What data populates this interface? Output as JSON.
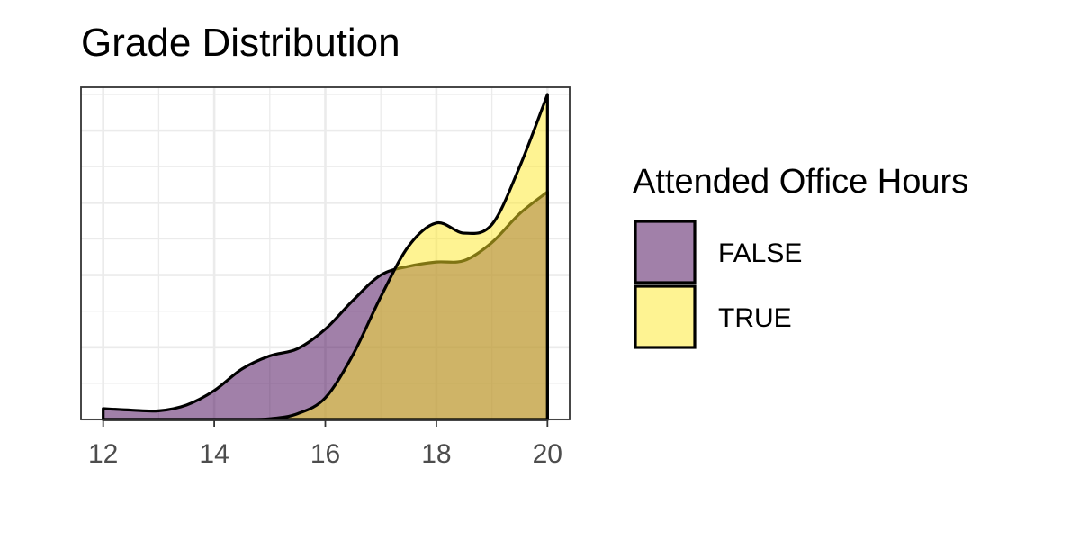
{
  "chart_data": {
    "type": "area",
    "subtype": "density",
    "title": "Grade Distribution",
    "xlabel": "",
    "ylabel": "",
    "xlim": [
      11.6,
      20.4
    ],
    "ylim": [
      0,
      0.46
    ],
    "x_ticks": [
      12,
      14,
      16,
      18,
      20
    ],
    "x_tick_labels": [
      "12",
      "14",
      "16",
      "18",
      "20"
    ],
    "y_tick_labels_visible": false,
    "grid": true,
    "legend": {
      "title": "Attended Office Hours",
      "position": "right",
      "entries": [
        "FALSE",
        "TRUE"
      ]
    },
    "series": [
      {
        "name": "FALSE",
        "color": "#440154",
        "alpha": 0.5,
        "x": [
          12,
          12.5,
          13,
          13.5,
          14,
          14.5,
          15,
          15.5,
          16,
          16.5,
          17,
          17.5,
          18,
          18.5,
          19,
          19.5,
          20
        ],
        "y": [
          0.015,
          0.013,
          0.012,
          0.02,
          0.04,
          0.07,
          0.088,
          0.098,
          0.125,
          0.165,
          0.2,
          0.212,
          0.218,
          0.22,
          0.245,
          0.285,
          0.315
        ]
      },
      {
        "name": "TRUE",
        "color": "#FDE725",
        "alpha": 0.5,
        "x": [
          12,
          12.5,
          13,
          13.5,
          14,
          14.5,
          15,
          15.5,
          16,
          16.5,
          17,
          17.5,
          18,
          18.5,
          19,
          19.5,
          20
        ],
        "y": [
          0,
          0,
          0,
          0,
          0,
          0,
          0.001,
          0.008,
          0.03,
          0.09,
          0.17,
          0.24,
          0.272,
          0.258,
          0.27,
          0.35,
          0.45
        ]
      }
    ]
  }
}
